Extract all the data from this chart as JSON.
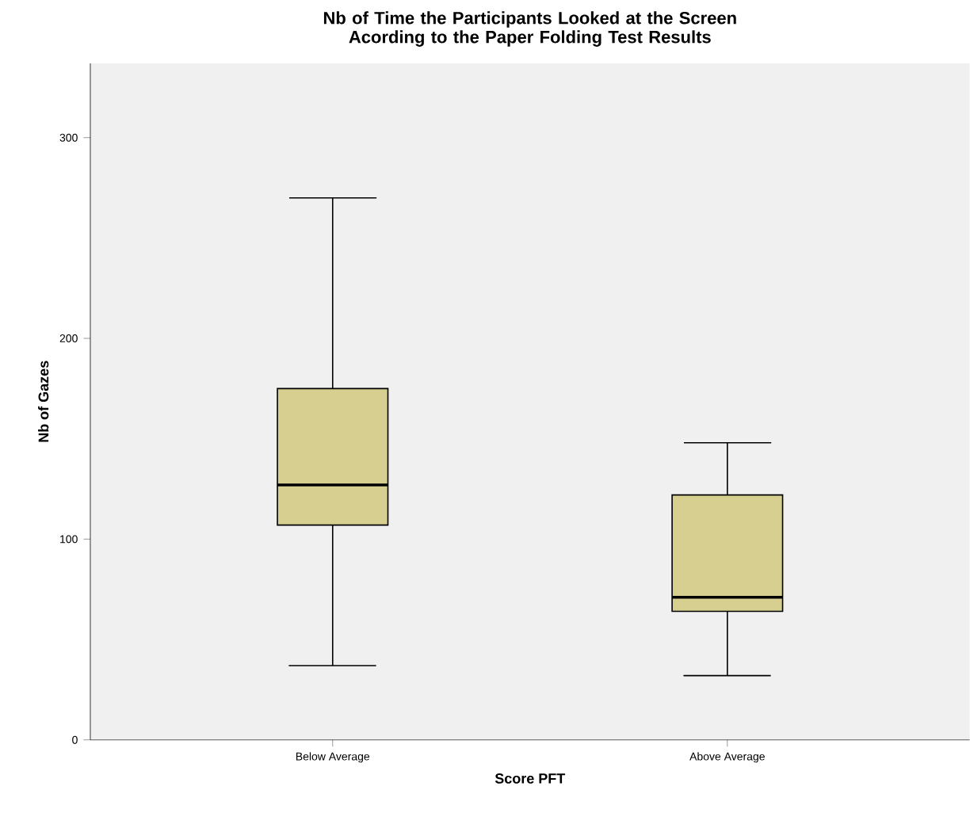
{
  "chart_data": {
    "type": "box",
    "title": "Nb of Time the Participants Looked at the Screen Acording to the Paper Folding Test Results",
    "xlabel": "Score PFT",
    "ylabel": "Nb of Gazes",
    "categories": [
      "Below Average",
      "Above Average"
    ],
    "series": [
      {
        "color": "#d6cf8f",
        "boxes": [
          {
            "low": 37,
            "q1": 107,
            "median": 127,
            "q3": 175,
            "high": 270
          },
          {
            "low": 32,
            "q1": 64,
            "median": 71,
            "q3": 122,
            "high": 148
          }
        ]
      }
    ],
    "ylim": [
      0,
      337
    ],
    "yticks": [
      0,
      100,
      200,
      300
    ],
    "grid": false
  }
}
